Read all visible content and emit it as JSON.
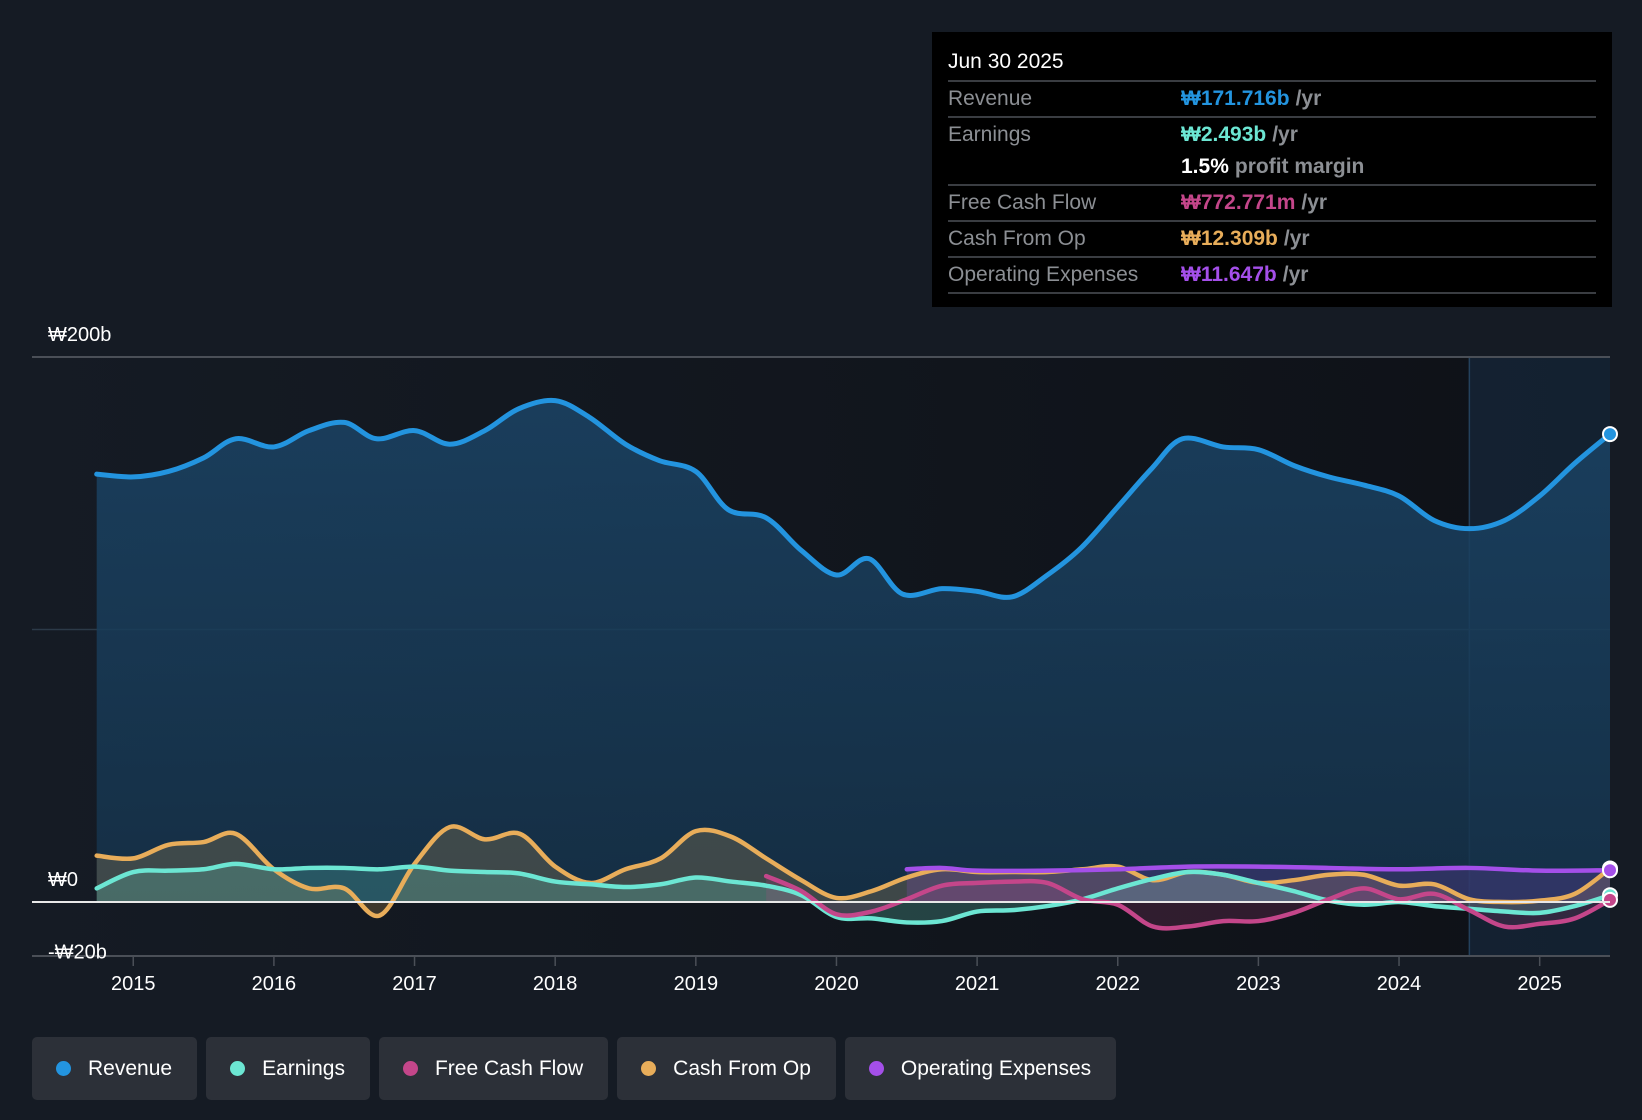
{
  "tooltip": {
    "date": "Jun 30 2025",
    "rows": [
      {
        "label": "Revenue",
        "value": "₩171.716b",
        "unit": "/yr",
        "color": "#2394df"
      },
      {
        "label": "Earnings",
        "value": "₩2.493b",
        "unit": "/yr",
        "color": "#6ce6d3"
      },
      {
        "label": "",
        "value": "1.5%",
        "unit": "profit margin",
        "color": "#ffffff"
      },
      {
        "label": "Free Cash Flow",
        "value": "₩772.771m",
        "unit": "/yr",
        "color": "#c4468a"
      },
      {
        "label": "Cash From Op",
        "value": "₩12.309b",
        "unit": "/yr",
        "color": "#e8ad5a"
      },
      {
        "label": "Operating Expenses",
        "value": "₩11.647b",
        "unit": "/yr",
        "color": "#a44fe9"
      }
    ]
  },
  "legend": [
    {
      "label": "Revenue",
      "color": "#2394df"
    },
    {
      "label": "Earnings",
      "color": "#6ce6d3"
    },
    {
      "label": "Free Cash Flow",
      "color": "#c4468a"
    },
    {
      "label": "Cash From Op",
      "color": "#e8ad5a"
    },
    {
      "label": "Operating Expenses",
      "color": "#a44fe9"
    }
  ],
  "chart_data": {
    "type": "area",
    "title": "",
    "xlabel": "",
    "ylabel": "",
    "currency_unit": "₩ billions",
    "xlim": [
      2014.28,
      2025.5
    ],
    "ylim": [
      -20,
      200
    ],
    "y_tick_labels": [
      {
        "value": 200,
        "label": "₩200b"
      },
      {
        "value": 0,
        "label": "₩0"
      },
      {
        "value": -20,
        "label": "-₩20b"
      }
    ],
    "gridlines": [
      100
    ],
    "x_ticks": [
      2015,
      2016,
      2017,
      2018,
      2019,
      2020,
      2021,
      2022,
      2023,
      2024,
      2025
    ],
    "highlight_start": 2024.5,
    "legend_position": "bottom-left",
    "series": [
      {
        "name": "Revenue",
        "color": "#2394df",
        "x": [
          2014.74,
          2015.0,
          2015.25,
          2015.5,
          2015.73,
          2016.0,
          2016.25,
          2016.5,
          2016.73,
          2017.0,
          2017.25,
          2017.5,
          2017.74,
          2018.0,
          2018.24,
          2018.5,
          2018.74,
          2019.0,
          2019.23,
          2019.5,
          2019.75,
          2020.0,
          2020.23,
          2020.47,
          2020.75,
          2021.0,
          2021.25,
          2021.5,
          2021.74,
          2022.0,
          2022.24,
          2022.46,
          2022.75,
          2023.0,
          2023.26,
          2023.5,
          2023.75,
          2024.0,
          2024.25,
          2024.5,
          2024.75,
          2025.0,
          2025.25,
          2025.5
        ],
        "values": [
          157,
          156,
          158,
          163,
          170,
          167,
          173,
          176,
          170,
          173,
          168,
          173,
          181,
          184,
          178,
          168,
          162,
          158,
          144,
          141,
          129,
          120,
          126,
          113,
          115,
          114,
          112,
          120,
          130,
          145,
          159,
          170,
          167,
          166,
          160,
          156,
          153,
          149,
          140,
          137,
          140,
          149,
          161,
          171.716
        ]
      },
      {
        "name": "Earnings",
        "color": "#6ce6d3",
        "x": [
          2014.74,
          2015.0,
          2015.25,
          2015.5,
          2015.73,
          2016.0,
          2016.25,
          2016.5,
          2016.75,
          2017.0,
          2017.25,
          2017.5,
          2017.74,
          2018.0,
          2018.25,
          2018.5,
          2018.75,
          2019.0,
          2019.25,
          2019.5,
          2019.75,
          2020.0,
          2020.25,
          2020.5,
          2020.75,
          2021.0,
          2021.25,
          2021.5,
          2021.75,
          2022.0,
          2022.25,
          2022.5,
          2022.75,
          2023.0,
          2023.25,
          2023.5,
          2023.75,
          2024.0,
          2024.25,
          2024.5,
          2024.75,
          2025.0,
          2025.25,
          2025.5
        ],
        "values": [
          5,
          11,
          11.5,
          12,
          14,
          12,
          12.5,
          12.5,
          12,
          13,
          11.5,
          11,
          10.5,
          7.5,
          6.5,
          5.5,
          6.5,
          9,
          7.5,
          6,
          2.5,
          -5.5,
          -6,
          -7.5,
          -7,
          -3.5,
          -3,
          -1.5,
          1,
          5,
          8.5,
          11,
          10,
          7,
          4,
          0.5,
          -1,
          0,
          -1.5,
          -2.5,
          -3.5,
          -4,
          -1.5,
          2.493
        ]
      },
      {
        "name": "Free Cash Flow",
        "color": "#c4468a",
        "x": [
          2019.5,
          2019.75,
          2020.0,
          2020.25,
          2020.5,
          2020.75,
          2021.0,
          2021.25,
          2021.5,
          2021.75,
          2022.0,
          2022.25,
          2022.5,
          2022.75,
          2023.0,
          2023.25,
          2023.5,
          2023.75,
          2024.0,
          2024.25,
          2024.5,
          2024.75,
          2025.0,
          2025.25,
          2025.5
        ],
        "values": [
          9.5,
          4,
          -4.5,
          -3.5,
          1,
          6,
          7,
          7.5,
          7,
          1,
          -1,
          -9,
          -9,
          -7,
          -7,
          -4,
          1,
          5,
          1,
          3,
          -3,
          -9,
          -8,
          -6,
          0.773
        ]
      },
      {
        "name": "Cash From Op",
        "color": "#e8ad5a",
        "x": [
          2014.74,
          2015.0,
          2015.25,
          2015.5,
          2015.73,
          2016.0,
          2016.25,
          2016.5,
          2016.75,
          2017.0,
          2017.25,
          2017.5,
          2017.75,
          2018.0,
          2018.25,
          2018.5,
          2018.75,
          2019.0,
          2019.25,
          2019.5,
          2019.75,
          2020.0,
          2020.25,
          2020.5,
          2020.75,
          2021.0,
          2021.25,
          2021.5,
          2021.75,
          2022.0,
          2022.25,
          2022.5,
          2022.75,
          2023.0,
          2023.25,
          2023.5,
          2023.75,
          2024.0,
          2024.25,
          2024.5,
          2024.75,
          2025.0,
          2025.25,
          2025.5
        ],
        "values": [
          17,
          16,
          21,
          22,
          25,
          12,
          5,
          5,
          -5,
          14,
          27.5,
          23,
          25,
          13,
          7,
          12,
          16,
          26,
          24,
          16,
          8,
          1.5,
          4,
          9,
          12,
          11,
          11,
          11,
          12,
          13,
          8,
          11,
          10,
          7,
          8,
          10,
          10,
          6,
          6.5,
          1,
          0,
          0.5,
          3,
          12.309
        ]
      },
      {
        "name": "Operating Expenses",
        "color": "#a44fe9",
        "x": [
          2020.5,
          2020.75,
          2021.0,
          2021.5,
          2022.0,
          2022.5,
          2023.0,
          2023.5,
          2024.0,
          2024.5,
          2025.0,
          2025.5
        ],
        "values": [
          12,
          12.5,
          11.5,
          11.5,
          12,
          13,
          13,
          12.5,
          12,
          12.5,
          11.5,
          11.647
        ]
      }
    ]
  }
}
